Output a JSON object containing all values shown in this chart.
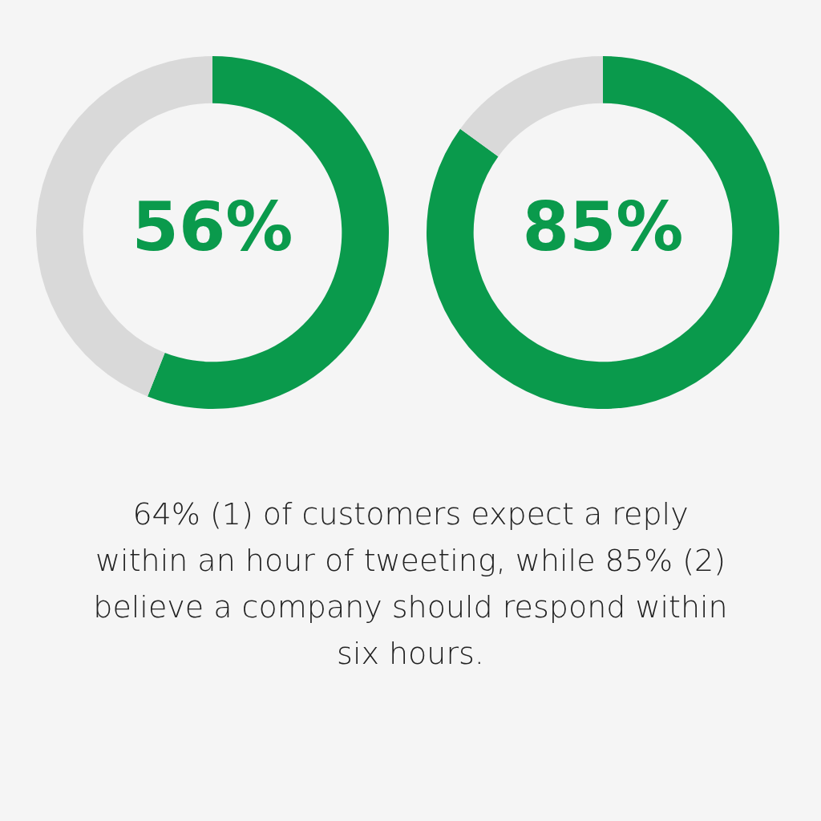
{
  "chart_data": [
    {
      "type": "donut",
      "categories": [
        null,
        null
      ],
      "values": [
        56,
        44
      ],
      "colors": [
        "#0a9a4c",
        "#d9d9d9"
      ],
      "value_labels": [
        "56%",
        null
      ]
    },
    {
      "type": "donut",
      "categories": [
        null,
        null
      ],
      "values": [
        85,
        15
      ],
      "colors": [
        "#0a9a4c",
        "#d9d9d9"
      ],
      "value_labels": [
        "85%",
        null
      ]
    },
    {
      "type": "other",
      "annotations": [
        "64% (1) of customers expect a reply within an hour of tweeting, while 85% (2) believe a company should respond within six hours."
      ]
    }
  ]
}
